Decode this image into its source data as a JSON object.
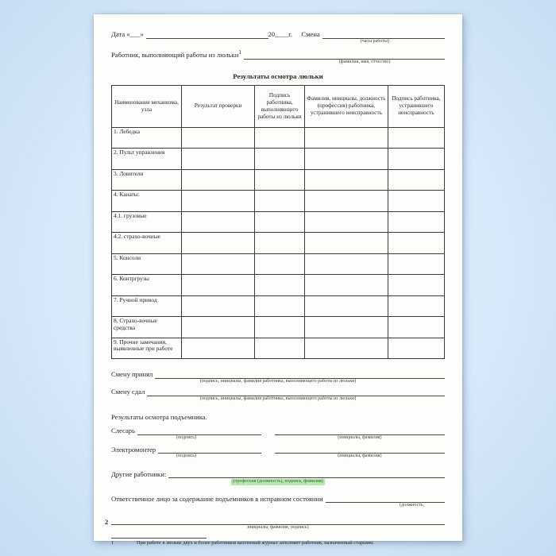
{
  "colors": {
    "background": "#d7e9fa",
    "page": "#fdfdfc",
    "text": "#2b2622",
    "table_border": "#3e3934",
    "highlight_background": "#b9e6ae",
    "highlight_text": "#1d6e28"
  },
  "header": {
    "date_label": "Дата «___»",
    "year_label": "20____г.",
    "shift_label": "Смена",
    "shift_caption": "(часы работы)",
    "worker_label": "Работник, выполняющий работы из люльки",
    "worker_footnote_mark": "1",
    "worker_caption": "(фамилия, имя, отчество)"
  },
  "table": {
    "title": "Результаты осмотра люльки",
    "headers": [
      "Наименование механизма, узла",
      "Результат проверки",
      "Подпись работника, выполняющего работы из люльки",
      "Фамилия, инициалы, должность (профессия) работника, устранившего неисправность",
      "Подпись работника, устранившего неисправность"
    ],
    "rows": [
      "1. Лебедка",
      "2. Пульт управления",
      "3. Ловители",
      "4. Канаты:",
      "4.1. грузовые",
      "4.2. страхо-вочные",
      "5. Консоли",
      "6. Контргрузы",
      "7. Ручной привод",
      "8. Страхо-вочные средства",
      "9. Прочие замечания, выявленные при работе"
    ]
  },
  "shift": {
    "accepted_label": "Смену принял",
    "accepted_caption": "(подпись, инициалы, фамилия работника, выполняющего работы из люльки)",
    "handed_label": "Смену сдал",
    "handed_caption": "(подпись, инициалы, фамилия работника, выполняющего работы из люльки)"
  },
  "lift": {
    "title": "Результаты осмотра подъемника.",
    "mechanic_label": "Слесарь",
    "electrician_label": "Электромонтер",
    "signature_caption": "(подпись)",
    "initials_caption": "(инициалы, фамилия)",
    "others_label": "Другие работники:",
    "others_caption": "(профессия (должность), подпись, фамилия)",
    "responsible_label": "Ответственное лицо за содержание подъемников в исправном состоянии",
    "responsible_caption_1": "(должность,",
    "responsible_caption_2": "инициалы, фамилия, подпись)"
  },
  "footnote": {
    "mark": "1",
    "text": "При работе в люльке двух и более работников вахтенный журнал заполняет работник, назначенный старшим."
  },
  "page_number": "2"
}
